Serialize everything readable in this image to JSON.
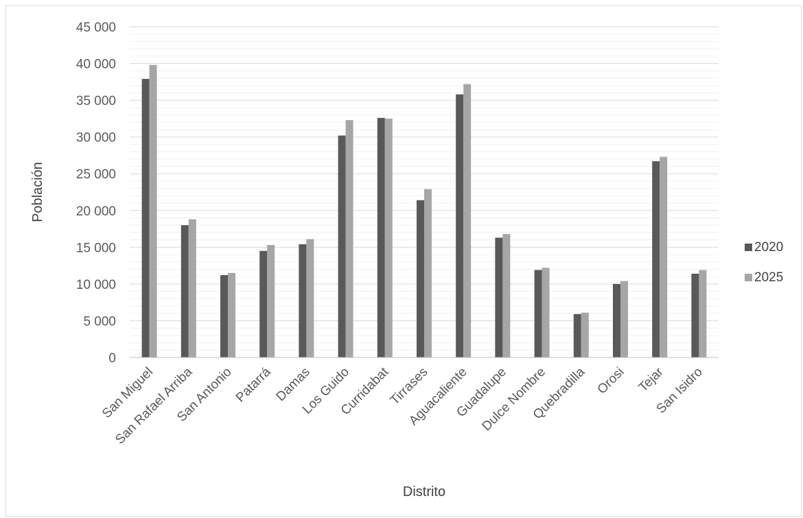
{
  "chart_data": {
    "type": "bar",
    "title": "",
    "xlabel": "Distrito",
    "ylabel": "Población",
    "ylim": [
      0,
      45000
    ],
    "y_major_step": 5000,
    "y_minor_step": 1000,
    "y_tick_labels": [
      "0",
      "5 000",
      "10 000",
      "15 000",
      "20 000",
      "25 000",
      "30 000",
      "35 000",
      "40 000",
      "45 000"
    ],
    "grid": true,
    "legend_position": "right",
    "categories": [
      "San Miguel",
      "San Rafael Arriba",
      "San Antonio",
      "Patarrá",
      "Damas",
      "Los Guido",
      "Curridabat",
      "Tirrases",
      "Aguacaliente",
      "Guadalupe",
      "Dulce Nombre",
      "Quebradilla",
      "Orosi",
      "Tejar",
      "San Isidro"
    ],
    "series": [
      {
        "name": "2020",
        "color": "#595959",
        "values": [
          37900,
          18000,
          11200,
          14500,
          15400,
          30200,
          32600,
          21400,
          35800,
          16300,
          11900,
          5900,
          10000,
          26700,
          11400
        ]
      },
      {
        "name": "2025",
        "color": "#a6a6a6",
        "values": [
          39800,
          18800,
          11500,
          15300,
          16100,
          32300,
          32500,
          22900,
          37200,
          16800,
          12200,
          6100,
          10400,
          27300,
          11900
        ]
      }
    ]
  }
}
